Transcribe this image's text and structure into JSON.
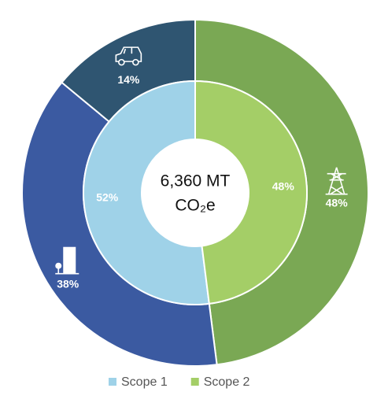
{
  "chart_data": {
    "type": "donut",
    "center_text": [
      "6,360 MT",
      "CO₂e"
    ],
    "inner": {
      "categories": [
        "Scope 1",
        "Scope 2"
      ],
      "values": [
        52,
        48
      ],
      "value_labels": [
        "52%",
        "48%"
      ],
      "colors": [
        "#9fd2e8",
        "#a4ce67"
      ],
      "direction": "counterclockwise"
    },
    "outer": {
      "values": [
        48,
        38,
        14
      ],
      "value_labels": [
        "48%",
        "38%",
        "14%"
      ],
      "colors": [
        "#7aa854",
        "#3b5aa1",
        "#2f5571"
      ],
      "direction": "clockwise"
    },
    "legend": "bottom"
  }
}
